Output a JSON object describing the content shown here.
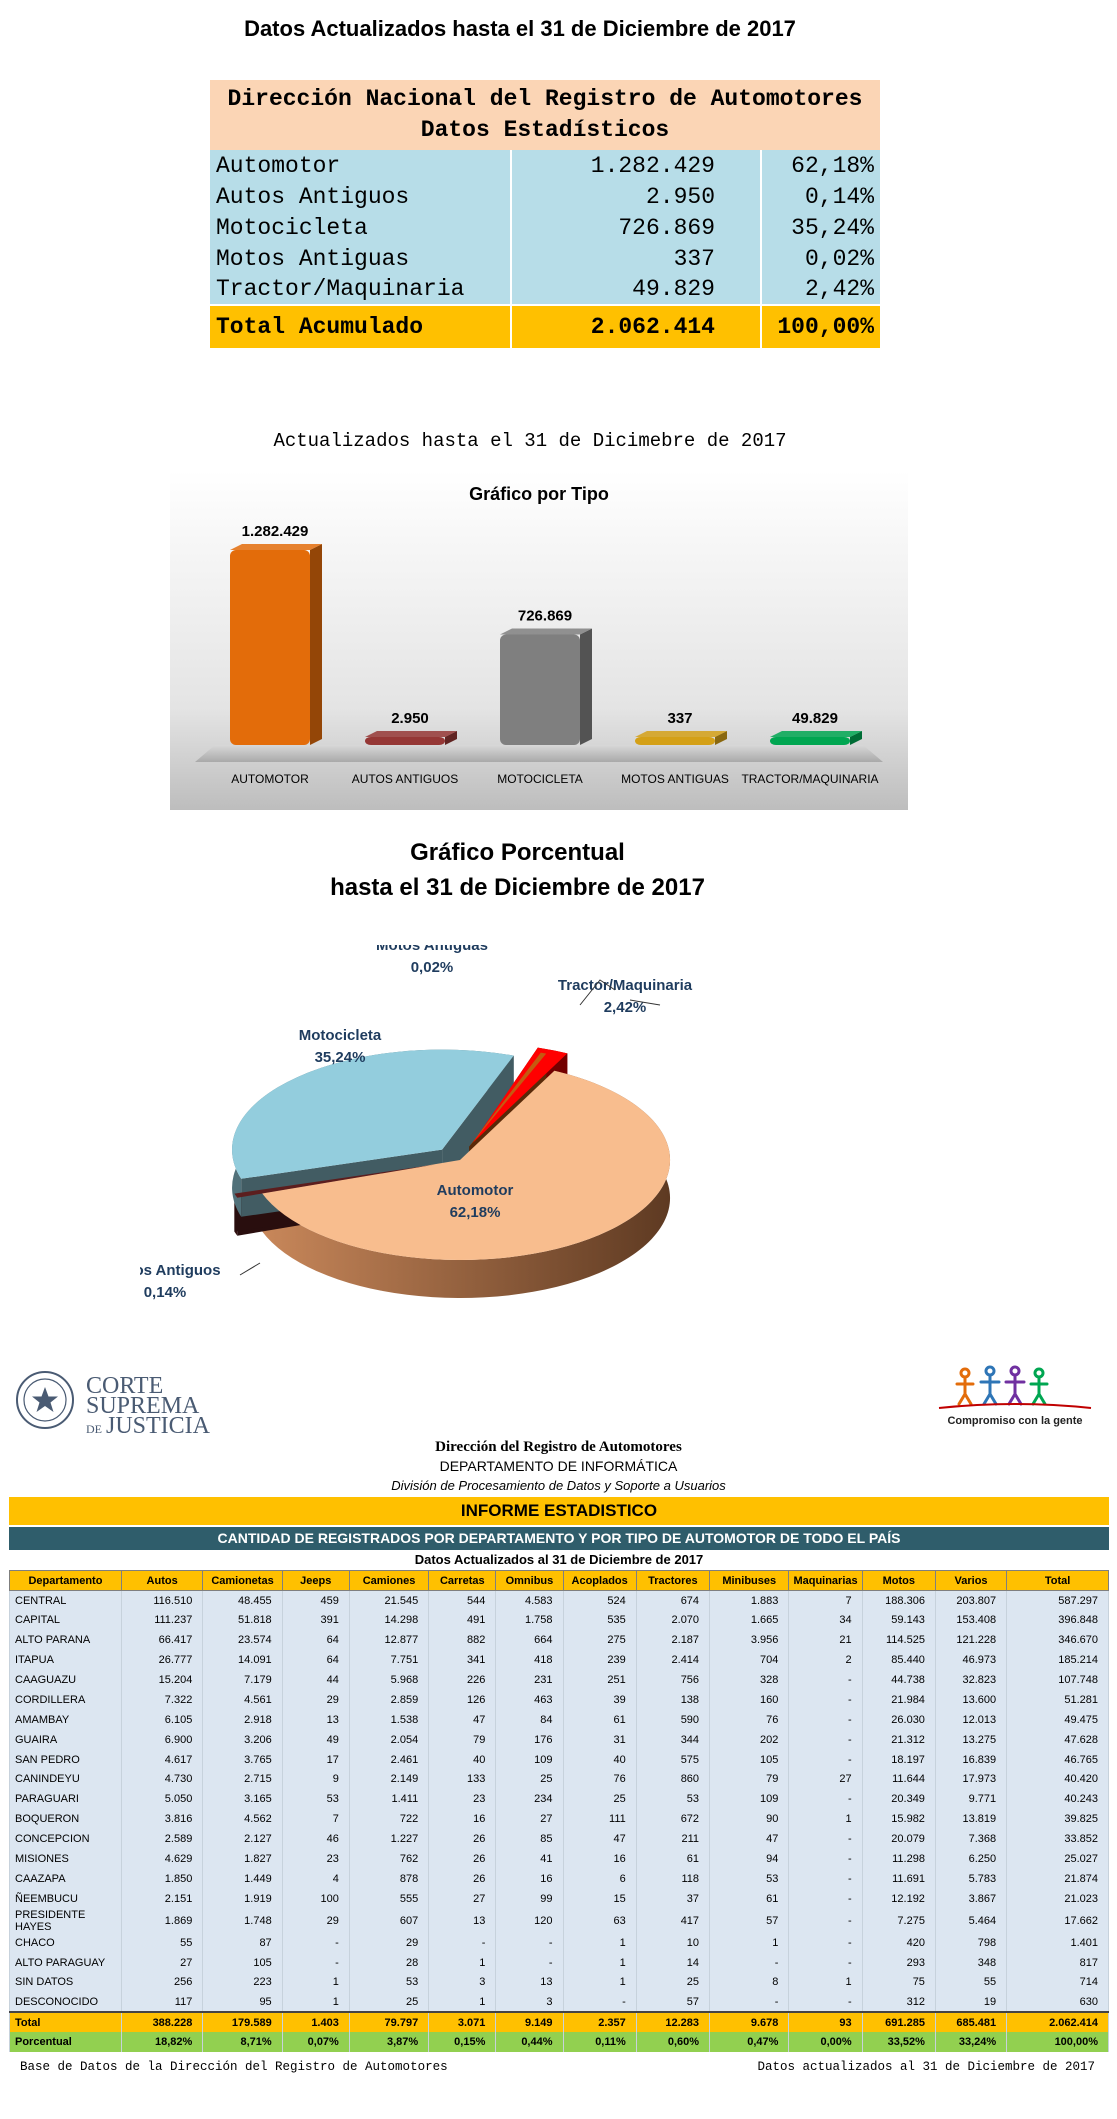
{
  "top_title": "Datos Actualizados hasta el 31 de Diciembre de 2017",
  "summary": {
    "header_line1": "Dirección Nacional del Registro de Automotores",
    "header_line2": "Datos Estadísticos",
    "rows": [
      {
        "name": "Automotor",
        "value": "1.282.429",
        "pct": "62,18%"
      },
      {
        "name": "Autos Antiguos",
        "value": "2.950",
        "pct": "0,14%"
      },
      {
        "name": "Motocicleta",
        "value": "726.869",
        "pct": "35,24%"
      },
      {
        "name": "Motos Antiguas",
        "value": "337",
        "pct": "0,02%"
      },
      {
        "name": "Tractor/Maquinaria",
        "value": "49.829",
        "pct": "2,42%"
      }
    ],
    "total": {
      "name": "Total Acumulado",
      "value": "2.062.414",
      "pct": "100,00%"
    }
  },
  "bar_caption": "Actualizados hasta el 31 de Dicimebre de 2017",
  "chart_data": [
    {
      "type": "bar",
      "title": "Gráfico por Tipo",
      "categories": [
        "AUTOMOTOR",
        "AUTOS ANTIGUOS",
        "MOTOCICLETA",
        "MOTOS ANTIGUAS",
        "TRACTOR/MAQUINARIA"
      ],
      "values": [
        1282429,
        2950,
        726869,
        337,
        49829
      ],
      "value_labels": [
        "1.282.429",
        "2.950",
        "726.869",
        "337",
        "49.829"
      ],
      "colors": [
        "#e36c0a",
        "#953735",
        "#7f7f7f",
        "#d4a017",
        "#00a651"
      ],
      "grid": false
    },
    {
      "type": "pie",
      "title": "Gráfico Porcentual",
      "subtitle": "hasta el 31 de Diciembre de 2017",
      "labels": [
        "Automotor",
        "Autos Antiguos",
        "Motocicleta",
        "Motos Antiguas",
        "Tractor/Maquinaria"
      ],
      "values": [
        62.18,
        0.14,
        35.24,
        0.02,
        2.42
      ],
      "value_labels": [
        "62,18%",
        "0,14%",
        "35,24%",
        "0,02%",
        "2,42%"
      ],
      "colors": [
        "#f8bd8e",
        "#5c1e1e",
        "#93cddd",
        "#c55a11",
        "#ff0000"
      ]
    }
  ],
  "logos": {
    "csj_line1": "CORTE",
    "csj_line2": "SUPREMA",
    "csj_line3_small": "DE",
    "csj_line3": "JUSTICIA",
    "cg_text": "Compromiso con la gente"
  },
  "org": {
    "line1": "Dirección del Registro de Automotores",
    "line2": "DEPARTAMENTO DE INFORMÁTICA",
    "line3": "División de Procesamiento de Datos y Soporte a Usuarios"
  },
  "report": {
    "title": "INFORME ESTADISTICO",
    "subtitle": "CANTIDAD DE REGISTRADOS POR DEPARTAMENTO Y POR TIPO DE AUTOMOTOR DE TODO EL PAÍS",
    "date_line": "Datos Actualizados al 31 de Diciembre de 2017",
    "columns": [
      "Departamento",
      "Autos",
      "Camionetas",
      "Jeeps",
      "Camiones",
      "Carretas",
      "Omnibus",
      "Acoplados",
      "Tractores",
      "Minibuses",
      "Maquinarias",
      "Motos",
      "Varios",
      "Total"
    ],
    "rows": [
      [
        "CENTRAL",
        "116.510",
        "48.455",
        "459",
        "21.545",
        "544",
        "4.583",
        "524",
        "674",
        "1.883",
        "7",
        "188.306",
        "203.807",
        "587.297"
      ],
      [
        "CAPITAL",
        "111.237",
        "51.818",
        "391",
        "14.298",
        "491",
        "1.758",
        "535",
        "2.070",
        "1.665",
        "34",
        "59.143",
        "153.408",
        "396.848"
      ],
      [
        "ALTO PARANA",
        "66.417",
        "23.574",
        "64",
        "12.877",
        "882",
        "664",
        "275",
        "2.187",
        "3.956",
        "21",
        "114.525",
        "121.228",
        "346.670"
      ],
      [
        "ITAPUA",
        "26.777",
        "14.091",
        "64",
        "7.751",
        "341",
        "418",
        "239",
        "2.414",
        "704",
        "2",
        "85.440",
        "46.973",
        "185.214"
      ],
      [
        "CAAGUAZU",
        "15.204",
        "7.179",
        "44",
        "5.968",
        "226",
        "231",
        "251",
        "756",
        "328",
        "-",
        "44.738",
        "32.823",
        "107.748"
      ],
      [
        "CORDILLERA",
        "7.322",
        "4.561",
        "29",
        "2.859",
        "126",
        "463",
        "39",
        "138",
        "160",
        "-",
        "21.984",
        "13.600",
        "51.281"
      ],
      [
        "AMAMBAY",
        "6.105",
        "2.918",
        "13",
        "1.538",
        "47",
        "84",
        "61",
        "590",
        "76",
        "-",
        "26.030",
        "12.013",
        "49.475"
      ],
      [
        "GUAIRA",
        "6.900",
        "3.206",
        "49",
        "2.054",
        "79",
        "176",
        "31",
        "344",
        "202",
        "-",
        "21.312",
        "13.275",
        "47.628"
      ],
      [
        "SAN PEDRO",
        "4.617",
        "3.765",
        "17",
        "2.461",
        "40",
        "109",
        "40",
        "575",
        "105",
        "-",
        "18.197",
        "16.839",
        "46.765"
      ],
      [
        "CANINDEYU",
        "4.730",
        "2.715",
        "9",
        "2.149",
        "133",
        "25",
        "76",
        "860",
        "79",
        "27",
        "11.644",
        "17.973",
        "40.420"
      ],
      [
        "PARAGUARI",
        "5.050",
        "3.165",
        "53",
        "1.411",
        "23",
        "234",
        "25",
        "53",
        "109",
        "-",
        "20.349",
        "9.771",
        "40.243"
      ],
      [
        "BOQUERON",
        "3.816",
        "4.562",
        "7",
        "722",
        "16",
        "27",
        "111",
        "672",
        "90",
        "1",
        "15.982",
        "13.819",
        "39.825"
      ],
      [
        "CONCEPCION",
        "2.589",
        "2.127",
        "46",
        "1.227",
        "26",
        "85",
        "47",
        "211",
        "47",
        "-",
        "20.079",
        "7.368",
        "33.852"
      ],
      [
        "MISIONES",
        "4.629",
        "1.827",
        "23",
        "762",
        "26",
        "41",
        "16",
        "61",
        "94",
        "-",
        "11.298",
        "6.250",
        "25.027"
      ],
      [
        "CAAZAPA",
        "1.850",
        "1.449",
        "4",
        "878",
        "26",
        "16",
        "6",
        "118",
        "53",
        "-",
        "11.691",
        "5.783",
        "21.874"
      ],
      [
        "ÑEEMBUCU",
        "2.151",
        "1.919",
        "100",
        "555",
        "27",
        "99",
        "15",
        "37",
        "61",
        "-",
        "12.192",
        "3.867",
        "21.023"
      ],
      [
        "PRESIDENTE HAYES",
        "1.869",
        "1.748",
        "29",
        "607",
        "13",
        "120",
        "63",
        "417",
        "57",
        "-",
        "7.275",
        "5.464",
        "17.662"
      ],
      [
        "CHACO",
        "55",
        "87",
        "-",
        "29",
        "-",
        "-",
        "1",
        "10",
        "1",
        "-",
        "420",
        "798",
        "1.401"
      ],
      [
        "ALTO PARAGUAY",
        "27",
        "105",
        "-",
        "28",
        "1",
        "-",
        "1",
        "14",
        "-",
        "-",
        "293",
        "348",
        "817"
      ],
      [
        "SIN DATOS",
        "256",
        "223",
        "1",
        "53",
        "3",
        "13",
        "1",
        "25",
        "8",
        "1",
        "75",
        "55",
        "714"
      ],
      [
        "DESCONOCIDO",
        "117",
        "95",
        "1",
        "25",
        "1",
        "3",
        "-",
        "57",
        "-",
        "-",
        "312",
        "19",
        "630"
      ]
    ],
    "total_row": [
      "Total",
      "388.228",
      "179.589",
      "1.403",
      "79.797",
      "3.071",
      "9.149",
      "2.357",
      "12.283",
      "9.678",
      "93",
      "691.285",
      "685.481",
      "2.062.414"
    ],
    "percent_row": [
      "Porcentual",
      "18,82%",
      "8,71%",
      "0,07%",
      "3,87%",
      "0,15%",
      "0,44%",
      "0,11%",
      "0,60%",
      "0,47%",
      "0,00%",
      "33,52%",
      "33,24%",
      "100,00%"
    ]
  },
  "footer": {
    "left": "Base de Datos de la Dirección del Registro de Automotores",
    "right": "Datos actualizados al 31 de Diciembre de 2017"
  }
}
